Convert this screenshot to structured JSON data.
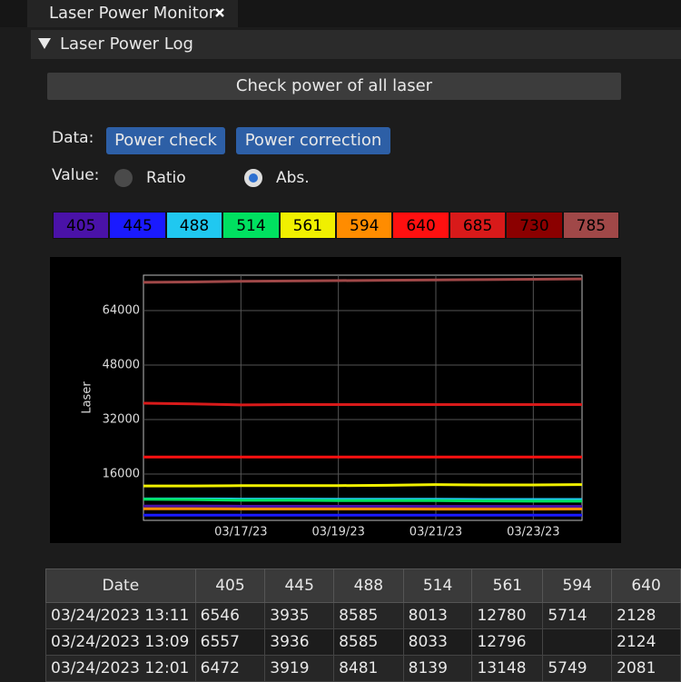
{
  "tab": {
    "title": "Laser Power Monitor"
  },
  "section": {
    "title": "Laser Power Log"
  },
  "check_button": "Check power of all laser",
  "data_label": "Data:",
  "data_buttons": [
    "Power check",
    "Power correction"
  ],
  "value_label": "Value:",
  "value_options": [
    {
      "label": "Ratio",
      "selected": false
    },
    {
      "label": "Abs.",
      "selected": true
    }
  ],
  "chart_data": {
    "type": "line",
    "y_label": "Laser",
    "x": [
      "03/15/23",
      "03/16/23",
      "03/17/23",
      "03/18/23",
      "03/19/23",
      "03/20/23",
      "03/21/23",
      "03/22/23",
      "03/23/23",
      "03/24/23"
    ],
    "xlim": [
      "03/15/23",
      "03/24/23"
    ],
    "xticks": [
      "03/17/23",
      "03/19/23",
      "03/21/23",
      "03/23/23"
    ],
    "ylim": [
      2400,
      74400
    ],
    "yticks": [
      16000,
      32000,
      48000,
      64000
    ],
    "grid": true,
    "series": [
      {
        "name": "405",
        "color": "#4a12a8",
        "values": [
          6600,
          6600,
          6550,
          6550,
          6550,
          6550,
          6500,
          6500,
          6500,
          6500
        ]
      },
      {
        "name": "445",
        "color": "#1a1aff",
        "values": [
          3950,
          3950,
          3940,
          3940,
          3930,
          3930,
          3930,
          3920,
          3920,
          3920
        ]
      },
      {
        "name": "488",
        "color": "#20c8f0",
        "values": [
          8700,
          8700,
          8650,
          8650,
          8600,
          8600,
          8600,
          8550,
          8550,
          8550
        ]
      },
      {
        "name": "514",
        "color": "#00e060",
        "values": [
          8600,
          8500,
          8300,
          8300,
          8200,
          8200,
          8200,
          8100,
          8050,
          8050
        ]
      },
      {
        "name": "561",
        "color": "#f0f000",
        "values": [
          12500,
          12500,
          12600,
          12600,
          12600,
          12700,
          12900,
          12800,
          12800,
          12900
        ]
      },
      {
        "name": "594",
        "color": "#ff8c00",
        "values": [
          5800,
          5800,
          5750,
          5750,
          5750,
          5750,
          5700,
          5700,
          5700,
          5730
        ]
      },
      {
        "name": "640",
        "color": "#ff1010",
        "values": [
          21000,
          21000,
          21000,
          21000,
          21000,
          21000,
          21000,
          21000,
          21000,
          21000
        ]
      },
      {
        "name": "685",
        "color": "#d81a1a",
        "values": [
          36800,
          36600,
          36300,
          36400,
          36400,
          36400,
          36400,
          36400,
          36400,
          36400
        ]
      },
      {
        "name": "730",
        "color": "#8b0000",
        "values": [
          null,
          null,
          null,
          null,
          null,
          null,
          null,
          null,
          null,
          null
        ]
      },
      {
        "name": "785",
        "color": "#a04848",
        "values": [
          72300,
          72400,
          72600,
          72700,
          72800,
          72900,
          73000,
          73100,
          73200,
          73300
        ]
      }
    ]
  },
  "table": {
    "header": [
      "Date",
      "405",
      "445",
      "488",
      "514",
      "561",
      "594",
      "640"
    ],
    "rows": [
      [
        "03/24/2023 13:11",
        6546,
        3935,
        8585,
        8013,
        12780,
        5714,
        2128
      ],
      [
        "03/24/2023 13:09",
        6557,
        3936,
        8585,
        8033,
        12796,
        null,
        2124
      ],
      [
        "03/24/2023 12:01",
        6472,
        3919,
        8481,
        8139,
        13148,
        5749,
        2081
      ]
    ]
  }
}
